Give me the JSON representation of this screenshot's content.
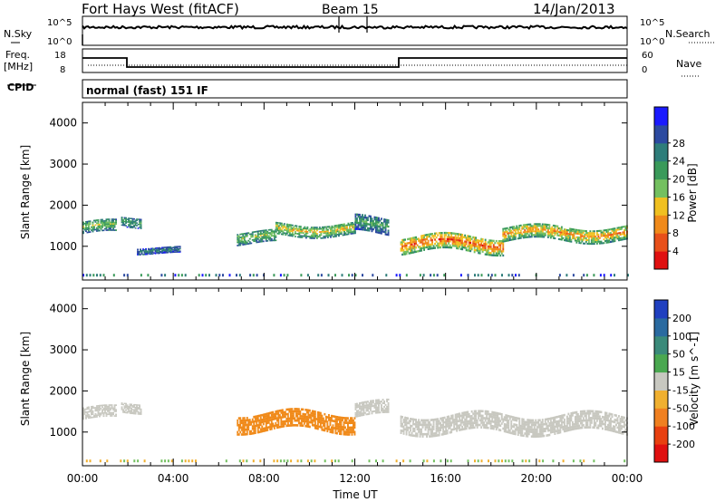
{
  "header": {
    "title": "Fort Hays West (fitACF)",
    "beam": "Beam 15",
    "date": "14/Jan/2013"
  },
  "top_panel": {
    "left_label": "N.Sky",
    "right_label": "N.Search",
    "left_ticks": [
      "10^5",
      "10^0"
    ],
    "right_ticks": [
      "10^5",
      "10^0"
    ]
  },
  "freq_panel": {
    "left_label_1": "Freq.",
    "left_label_2": "[MHz]",
    "left_ticks": [
      "18",
      "8"
    ],
    "right_label": "Nave",
    "right_ticks": [
      "60",
      "0"
    ]
  },
  "cpid": {
    "label": "CPID",
    "value": "normal (fast) 151 IF"
  },
  "chart_data": [
    {
      "type": "heatmap",
      "name": "power",
      "ylabel": "Slant Range [km]",
      "xlabel": "Time UT",
      "x_ticks": [
        "00:00",
        "04:00",
        "08:00",
        "12:00",
        "16:00",
        "20:00",
        "00:00"
      ],
      "xlim_hours": [
        0,
        24
      ],
      "y_ticks": [
        1000,
        2000,
        3000,
        4000
      ],
      "ylim": [
        180,
        4500
      ],
      "colorbar": {
        "label": "Power [dB]",
        "ticks": [
          "4",
          "8",
          "12",
          "16",
          "20",
          "24",
          "28"
        ],
        "colors": [
          "#1a1aff",
          "#2c4aa0",
          "#2e7d7a",
          "#3a9a5a",
          "#74c060",
          "#f0c020",
          "#f08a1a",
          "#e8501a",
          "#e01010"
        ]
      },
      "bands": [
        {
          "t0": 0.0,
          "t1": 1.5,
          "center": 1450,
          "width": 300,
          "level": 4
        },
        {
          "t0": 1.7,
          "t1": 2.6,
          "center": 1600,
          "width": 250,
          "level": 3
        },
        {
          "t0": 2.4,
          "t1": 4.3,
          "center": 900,
          "width": 150,
          "level": 2
        },
        {
          "t0": 6.8,
          "t1": 8.5,
          "center": 1200,
          "width": 300,
          "level": 4
        },
        {
          "t0": 8.5,
          "t1": 12.0,
          "center": 1400,
          "width": 300,
          "level": 5
        },
        {
          "t0": 12.0,
          "t1": 13.5,
          "center": 1500,
          "width": 400,
          "level": 3
        },
        {
          "t0": 14.0,
          "t1": 18.5,
          "center": 1050,
          "width": 400,
          "level": 7
        },
        {
          "t0": 18.5,
          "t1": 24.0,
          "center": 1300,
          "width": 350,
          "level": 6
        }
      ]
    },
    {
      "type": "heatmap",
      "name": "velocity",
      "ylabel": "Slant Range [km]",
      "xlabel": "Time UT",
      "x_ticks": [
        "00:00",
        "04:00",
        "08:00",
        "12:00",
        "16:00",
        "20:00",
        "00:00"
      ],
      "xlim_hours": [
        0,
        24
      ],
      "y_ticks": [
        1000,
        2000,
        3000,
        4000
      ],
      "ylim": [
        180,
        4500
      ],
      "colorbar": {
        "label": "Velocity [m s^-1]",
        "ticks": [
          "200",
          "100",
          "50",
          "15",
          "-15",
          "-50",
          "-100",
          "-200"
        ],
        "colors": [
          "#2040c0",
          "#2a6aa0",
          "#3a8a7a",
          "#4aa850",
          "#c8c8c0",
          "#f0b030",
          "#f08020",
          "#e84010",
          "#e01010"
        ]
      },
      "bands": [
        {
          "t0": 0.0,
          "t1": 1.5,
          "center": 1450,
          "width": 300,
          "color": "#c8c8c0"
        },
        {
          "t0": 1.7,
          "t1": 2.6,
          "center": 1600,
          "width": 250,
          "color": "#c8c8c0"
        },
        {
          "t0": 6.8,
          "t1": 12.0,
          "center": 1250,
          "width": 450,
          "color": "#f08a1a"
        },
        {
          "t0": 12.0,
          "t1": 13.5,
          "center": 1550,
          "width": 350,
          "color": "#c8c8c0"
        },
        {
          "t0": 14.0,
          "t1": 24.0,
          "center": 1200,
          "width": 450,
          "color": "#c8c8c0"
        }
      ]
    }
  ],
  "footer": {
    "xlabel": "Time UT"
  }
}
